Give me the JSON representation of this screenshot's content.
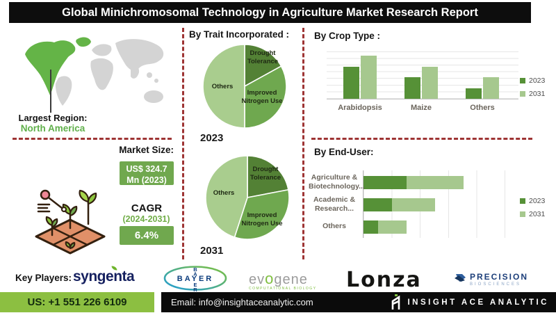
{
  "title": "Global Minichromosomal Technology in Agriculture Market Research Report",
  "map": {
    "region_label": "Largest Region:",
    "region_value": "North America",
    "highlight_color": "#64b447",
    "land_color": "#d4d4d4"
  },
  "market": {
    "size_label": "Market Size:",
    "size_value": "US$ 324.7 Mn (2023)",
    "cagr_label": "CAGR",
    "cagr_period": "(2024-2031)",
    "cagr_value": "6.4%",
    "box_color": "#70a84e"
  },
  "sections": {
    "trait": "By Trait Incorporated :",
    "crop": "By Crop Type :",
    "enduser": "By End-User:"
  },
  "chart_data": [
    {
      "type": "pie",
      "title": "By Trait Incorporated :",
      "year": "2023",
      "unit": "percent-estimated",
      "slices": [
        {
          "label": "Drought Tolerance",
          "value": 17,
          "color": "#538135"
        },
        {
          "label": "Improved Nitrogen Use",
          "value": 33,
          "color": "#6fa84f"
        },
        {
          "label": "Others",
          "value": 50,
          "color": "#a9cd8e"
        }
      ]
    },
    {
      "type": "pie",
      "title": "By Trait Incorporated :",
      "year": "2031",
      "unit": "percent-estimated",
      "slices": [
        {
          "label": "Drought Tolerance",
          "value": 22,
          "color": "#538135"
        },
        {
          "label": "Improved Nitrogen Use",
          "value": 33,
          "color": "#6fa84f"
        },
        {
          "label": "Others",
          "value": 45,
          "color": "#a9cd8e"
        }
      ]
    },
    {
      "type": "bar",
      "title": "By Crop Type :",
      "categories": [
        "Arabidopsis",
        "Maize",
        "Others"
      ],
      "series": [
        {
          "name": "2023",
          "color": "#569137",
          "values": [
            45,
            30,
            15
          ]
        },
        {
          "name": "2031",
          "color": "#a6c88e",
          "values": [
            60,
            45,
            30
          ]
        }
      ],
      "ylim": [
        0,
        75
      ],
      "grid": true,
      "legend_position": "right",
      "note": "no numeric axis shown; values estimated relative units"
    },
    {
      "type": "stacked-bar-horizontal",
      "title": "By End-User:",
      "categories": [
        "Agriculture & Biotechnology...",
        "Academic & Research...",
        "Others"
      ],
      "series": [
        {
          "name": "2023",
          "color": "#569137",
          "values": [
            30,
            20,
            10
          ]
        },
        {
          "name": "2031",
          "color": "#a6c88e",
          "values": [
            40,
            30,
            20
          ]
        }
      ],
      "xlim": [
        0,
        110
      ],
      "grid": true,
      "legend_position": "right",
      "note": "no numeric axis shown; values estimated relative units"
    }
  ],
  "key_players": {
    "label": "Key Players:",
    "syngenta": "syngenta",
    "bayer": "BAYER",
    "evogene_pre": "ev",
    "evogene_o": "o",
    "evogene_post": "gene",
    "evogene_tag": "COMPUTATIONAL BIOLOGY",
    "lonza": "Lonza",
    "precision_name": "PRECISION",
    "precision_sub": "BIOSCIENCES"
  },
  "footer": {
    "phone": "US: +1 551 226 6109",
    "email": "Email: info@insightaceanalytic.com",
    "brand": "INSIGHT ACE ANALYTIC",
    "phone_bg": "#8cbf41"
  },
  "colors": {
    "accent_dashed_line": "#9e3434",
    "series_2023": "#569137",
    "series_2031": "#a6c88e",
    "title_bg": "#0d0d0d",
    "cagr_green": "#70ad47"
  }
}
